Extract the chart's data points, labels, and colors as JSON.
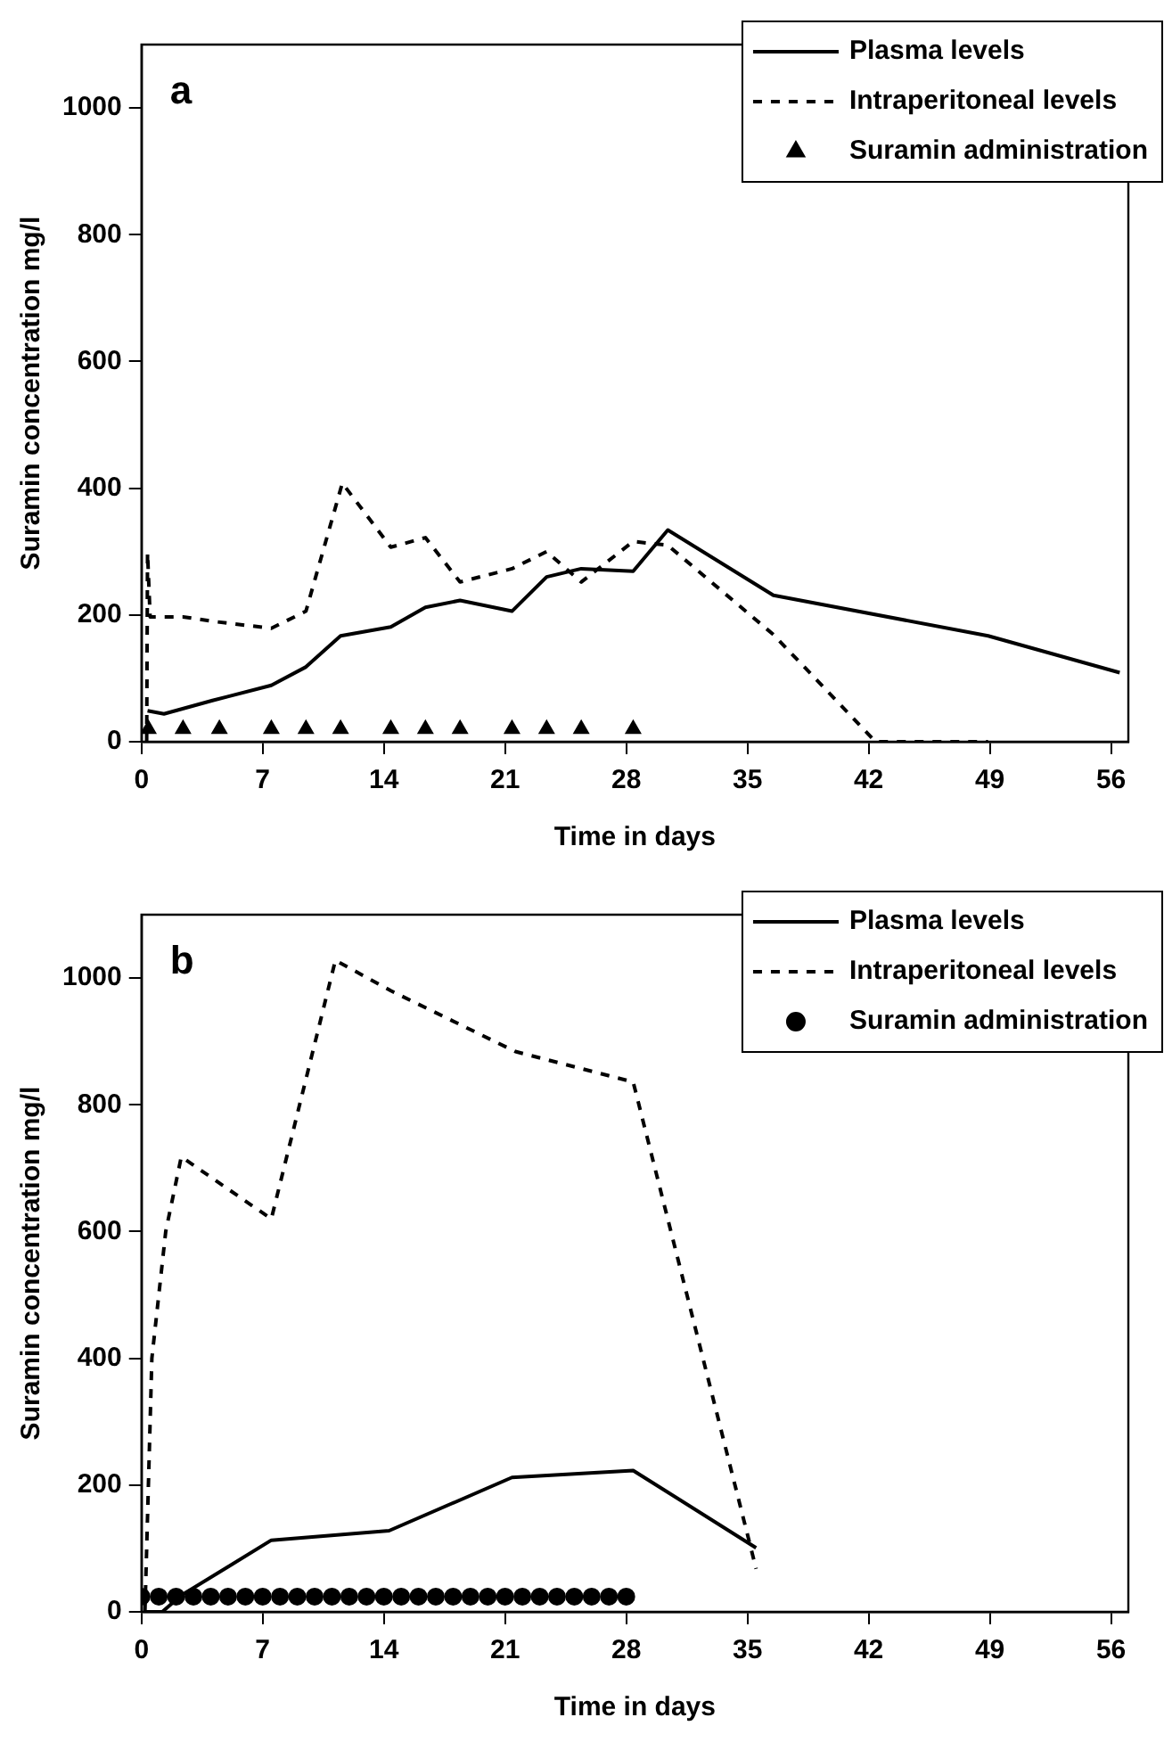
{
  "chart_data": [
    {
      "type": "line",
      "xlabel": "Time in days",
      "ylabel": "Suramin concentration mg/l",
      "annotations": [
        "a"
      ],
      "xlim": [
        0,
        57
      ],
      "xticks": [
        0,
        7,
        14,
        21,
        28,
        35,
        42,
        49,
        56
      ],
      "ylim": [
        0,
        1100
      ],
      "yticks": [
        0,
        200,
        400,
        600,
        800,
        1000
      ],
      "grid": false,
      "legend": "top right",
      "series": [
        {
          "name": "Plasma levels",
          "type": "line",
          "color": "#000000",
          "line_style": "solid",
          "marker": "none",
          "x": [
            0.35,
            1.3,
            4.1,
            7.5,
            9.5,
            11.5,
            14.4,
            16.4,
            18.4,
            21.4,
            23.4,
            25.4,
            28.4,
            30.4,
            36.5,
            48.9,
            56.5
          ],
          "values": [
            49,
            44,
            65,
            89,
            118,
            167,
            181,
            212,
            223,
            206,
            260,
            273,
            269,
            334,
            231,
            167,
            109
          ]
        },
        {
          "name": "Intraperitoneal levels",
          "type": "line",
          "color": "#000000",
          "line_style": "dashed",
          "marker": "none",
          "x": [
            0.3,
            0.35,
            0.5,
            2.4,
            4.1,
            7.5,
            9.5,
            11.6,
            14.4,
            16.4,
            18.4,
            21.4,
            23.4,
            25.4,
            28.4,
            30.4,
            36.5,
            42.4,
            48.9
          ],
          "values": [
            0,
            298,
            197,
            197,
            190,
            179,
            206,
            408,
            307,
            322,
            252,
            273,
            300,
            252,
            316,
            310,
            169,
            0,
            0
          ]
        },
        {
          "name": "Suramin administration",
          "type": "scatter",
          "color": "#000000",
          "marker": "triangle",
          "x": [
            0.4,
            2.4,
            4.5,
            7.5,
            9.5,
            11.5,
            14.4,
            16.4,
            18.4,
            21.4,
            23.4,
            25.4,
            28.4
          ],
          "values": [
            20,
            20,
            20,
            20,
            20,
            20,
            20,
            20,
            20,
            20,
            20,
            20,
            20
          ]
        }
      ]
    },
    {
      "type": "line",
      "xlabel": "Time in days",
      "ylabel": "Suramin concentration mg/l",
      "annotations": [
        "b"
      ],
      "xlim": [
        0,
        57
      ],
      "xticks": [
        0,
        7,
        14,
        21,
        28,
        35,
        42,
        49,
        56
      ],
      "ylim": [
        0,
        1100
      ],
      "yticks": [
        0,
        200,
        400,
        600,
        800,
        1000
      ],
      "grid": false,
      "legend": "top right",
      "series": [
        {
          "name": "Plasma levels",
          "type": "line",
          "color": "#000000",
          "line_style": "solid",
          "marker": "none",
          "x": [
            0.2,
            1.2,
            2.3,
            7.5,
            14.3,
            21.4,
            28.4,
            35.5
          ],
          "values": [
            0,
            0,
            26,
            113,
            128,
            212,
            223,
            101
          ]
        },
        {
          "name": "Intraperitoneal levels",
          "type": "line",
          "color": "#000000",
          "line_style": "dashed",
          "marker": "none",
          "x": [
            0.2,
            0.6,
            1.4,
            2.3,
            7.5,
            11.2,
            14.4,
            21.6,
            28.4,
            35.5
          ],
          "values": [
            0,
            400,
            600,
            718,
            620,
            1028,
            980,
            884,
            836,
            68
          ]
        },
        {
          "name": "Suramin administration",
          "type": "scatter",
          "color": "#000000",
          "marker": "circle",
          "x": [
            0,
            1,
            2,
            3,
            4,
            5,
            6,
            7,
            8,
            9,
            10,
            11,
            12,
            13,
            14,
            15,
            16,
            17,
            18,
            19,
            20,
            21,
            22,
            23,
            24,
            25,
            26,
            27,
            28
          ],
          "values": [
            24,
            24,
            24,
            24,
            24,
            24,
            24,
            24,
            24,
            24,
            24,
            24,
            24,
            24,
            24,
            24,
            24,
            24,
            24,
            24,
            24,
            24,
            24,
            24,
            24,
            24,
            24,
            24,
            24
          ]
        }
      ]
    }
  ]
}
